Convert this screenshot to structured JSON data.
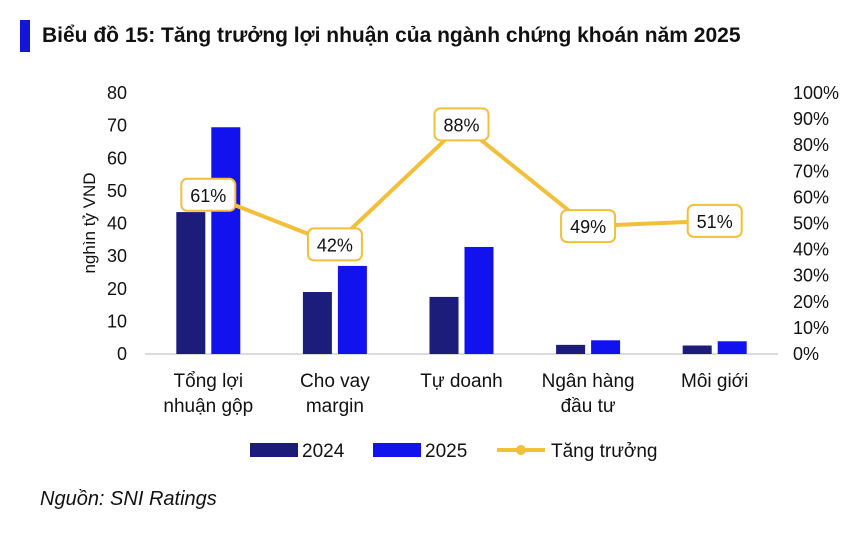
{
  "title": "Biểu đồ 15: Tăng trưởng lợi nhuận của ngành chứng khoán năm 2025",
  "source": "Nguồn: SNI Ratings",
  "colors": {
    "accent": "#1515d6",
    "s2024": "#1c1c7a",
    "s2025": "#1212ee",
    "growth": "#f2bf3a"
  },
  "chart_data": {
    "type": "bar",
    "categories": [
      [
        "Tổng lợi",
        "nhuận gộp"
      ],
      [
        "Cho vay",
        "margin"
      ],
      [
        "Tự doanh"
      ],
      [
        "Ngân hàng",
        "đầu tư"
      ],
      [
        "Môi giới"
      ]
    ],
    "series": [
      {
        "name": "2024",
        "axis": "left",
        "type": "bar",
        "values": [
          43.5,
          19,
          17.5,
          2.8,
          2.6
        ]
      },
      {
        "name": "2025",
        "axis": "left",
        "type": "bar",
        "values": [
          69.5,
          27,
          32.8,
          4.2,
          3.9
        ]
      },
      {
        "name": "Tăng trưởng",
        "axis": "right",
        "type": "line",
        "values": [
          61,
          42,
          88,
          49,
          51
        ],
        "labels": [
          "61%",
          "42%",
          "88%",
          "49%",
          "51%"
        ]
      }
    ],
    "ylabel": "nghìn tỷ VND",
    "ylim": [
      0,
      80
    ],
    "yticks": [
      "0",
      "10",
      "20",
      "30",
      "40",
      "50",
      "60",
      "70",
      "80"
    ],
    "y2lim": [
      0,
      100
    ],
    "y2ticks": [
      "0%",
      "10%",
      "20%",
      "30%",
      "40%",
      "50%",
      "60%",
      "70%",
      "80%",
      "90%",
      "100%"
    ],
    "legend_position": "bottom",
    "grid": false
  }
}
